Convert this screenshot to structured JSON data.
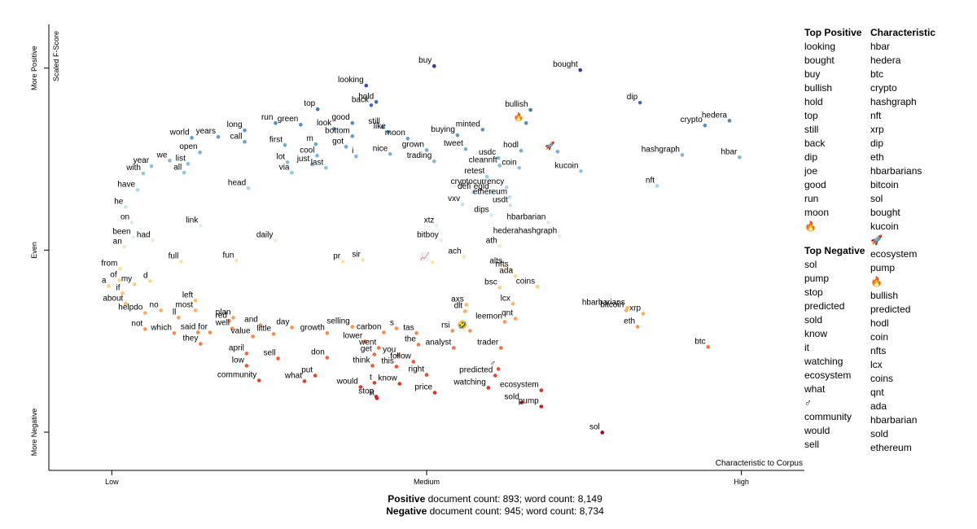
{
  "chart_data": {
    "type": "scatter",
    "ylabel": "Scaled F-Score",
    "xlabel": "Characteristic to Corpus",
    "xlim": [
      -10,
      110
    ],
    "ylim": [
      -121,
      124
    ],
    "xticks": [
      {
        "value": 0,
        "label": "Low"
      },
      {
        "value": 50,
        "label": "Medium"
      },
      {
        "value": 100,
        "label": "High"
      }
    ],
    "yticks": [
      {
        "value": -100,
        "label": "More Negative"
      },
      {
        "value": 0,
        "label": "Even"
      },
      {
        "value": 100,
        "label": "More Positive"
      }
    ],
    "colormap": [
      "#a50026",
      "#d73027",
      "#f46d43",
      "#fdae61",
      "#fee090",
      "#e0f3f8",
      "#abd9e9",
      "#74add1",
      "#4575b4",
      "#313695"
    ],
    "terms": [
      "buy",
      "bought",
      "looking",
      "hold",
      "back",
      "top",
      "dip",
      "bullish",
      "run",
      "green",
      "good",
      "still",
      "like",
      "long",
      "look",
      "minted",
      "crypto",
      "hedera",
      "world",
      "years",
      "call",
      "bottom",
      "moon",
      "buying",
      "first",
      "m",
      "got",
      "grown",
      "tweet",
      "hodl",
      "open",
      "cool",
      "i",
      "nice",
      "usdc",
      "lot",
      "just",
      "we",
      "trading",
      "list",
      "year",
      "cleannft",
      "coin",
      "last",
      "all",
      "via",
      "with",
      "hashgraph",
      "hbar",
      "kucoin",
      "retest",
      "nft",
      "head",
      "cryptocurrency",
      "have",
      "defi",
      "egld",
      "ethereum",
      "he",
      "vxv",
      "usdt",
      "dips",
      "on",
      "link",
      "xtz",
      "hbarbarian",
      "bitboy",
      "hederahashgraph",
      "been",
      "had",
      "daily",
      "ath",
      "an",
      "ach",
      "full",
      "fun",
      "pr",
      "sir",
      "alts",
      "nfts",
      "from",
      "of",
      "ada",
      "my",
      "d",
      "a",
      "coins",
      "bsc",
      "if",
      "left",
      "axs",
      "about",
      "lcx",
      "most",
      "dlt",
      "helpdo",
      "no",
      "hbarbarians",
      "bitcoin",
      "xrp",
      "ll",
      "qnt",
      "red",
      "plan",
      "leemon",
      "well",
      "selling",
      "and",
      "s",
      "rsi",
      "eth",
      "not",
      "which",
      "said",
      "for",
      "day",
      "growth",
      "little",
      "carbon",
      "tas",
      "value",
      "they",
      "lower",
      "the",
      "went",
      "analyst",
      "trader",
      "btc",
      "april",
      "get",
      "you",
      "don",
      "sell",
      "follow",
      "low",
      "think",
      "this",
      "predicted",
      "right",
      "put",
      "community",
      "what",
      "know",
      "t",
      "would",
      "ecosystem",
      "price",
      "watching",
      "stop",
      "sold",
      "pump",
      "it",
      "sol",
      "🔥",
      "🚀",
      "📈",
      "🤣",
      "♂"
    ],
    "x": [
      51.2,
      74.4,
      40.4,
      42.0,
      41.2,
      32.7,
      83.9,
      66.5,
      26.0,
      30.0,
      38.2,
      43.0,
      43.9,
      21.1,
      35.3,
      58.9,
      94.2,
      98.1,
      12.7,
      16.9,
      21.1,
      38.2,
      47.0,
      54.9,
      27.5,
      32.4,
      37.2,
      50.0,
      56.2,
      65.0,
      14.0,
      32.6,
      38.8,
      44.2,
      61.4,
      27.9,
      31.8,
      9.2,
      51.2,
      12.1,
      6.3,
      61.6,
      64.7,
      34.0,
      11.5,
      28.6,
      5.0,
      90.6,
      99.7,
      74.5,
      59.6,
      86.6,
      21.7,
      62.7,
      4.1,
      57.4,
      60.3,
      63.2,
      2.2,
      55.7,
      63.3,
      60.3,
      3.2,
      14.1,
      51.6,
      69.3,
      52.3,
      71.1,
      3.4,
      6.5,
      26.0,
      61.6,
      2.0,
      55.9,
      11.0,
      19.8,
      36.7,
      39.9,
      62.4,
      63.4,
      1.3,
      1.2,
      64.1,
      3.6,
      6.1,
      -0.5,
      67.6,
      61.6,
      1.7,
      13.3,
      56.3,
      2.2,
      63.7,
      13.3,
      56.1,
      5.3,
      7.8,
      81.9,
      81.7,
      84.4,
      10.6,
      64.1,
      18.7,
      19.3,
      62.4,
      19.1,
      38.2,
      23.6,
      45.2,
      54.1,
      83.5,
      5.3,
      9.9,
      13.7,
      15.6,
      28.6,
      34.2,
      25.7,
      43.2,
      48.4,
      22.4,
      14.1,
      40.2,
      48.7,
      42.4,
      54.3,
      61.8,
      94.7,
      21.4,
      41.7,
      45.5,
      34.2,
      26.4,
      47.9,
      21.4,
      41.4,
      45.2,
      60.9,
      50.0,
      32.3,
      23.4,
      30.6,
      45.7,
      41.7,
      39.5,
      68.2,
      51.3,
      59.8,
      42.0,
      65.1,
      68.2,
      42.1,
      77.9,
      65.8,
      70.8,
      50.9,
      56.9,
      61.4
    ],
    "y": [
      101.1,
      98.9,
      90.4,
      81.4,
      79.6,
      77.4,
      81.0,
      77.0,
      69.8,
      68.9,
      69.8,
      67.6,
      64.9,
      65.8,
      66.7,
      66.2,
      68.5,
      71.1,
      61.7,
      62.2,
      59.5,
      62.6,
      61.3,
      63.1,
      57.7,
      58.2,
      56.8,
      55.0,
      55.5,
      54.6,
      53.7,
      51.9,
      51.5,
      52.8,
      50.6,
      48.3,
      47.0,
      49.2,
      48.8,
      47.4,
      46.1,
      46.5,
      45.2,
      45.2,
      42.5,
      42.5,
      42.1,
      52.3,
      51.0,
      43.4,
      40.3,
      35.3,
      34.0,
      34.5,
      33.1,
      31.8,
      31.8,
      29.1,
      23.7,
      25.1,
      24.6,
      19.2,
      15.2,
      13.4,
      13.4,
      15.2,
      5.4,
      7.6,
      7.2,
      5.4,
      5.4,
      2.2,
      1.8,
      -3.6,
      -6.3,
      -5.8,
      -6.3,
      -5.4,
      -8.9,
      -10.7,
      -10.3,
      -16.6,
      -14.3,
      -18.8,
      -17.0,
      -19.7,
      -20.1,
      -20.6,
      -23.7,
      -27.7,
      -30.0,
      -29.5,
      -29.5,
      -33.1,
      -33.6,
      -34.5,
      -33.1,
      -31.8,
      -33.1,
      -34.9,
      -37.1,
      -37.6,
      -38.9,
      -37.1,
      -39.4,
      -43.0,
      -42.1,
      -41.2,
      -43.0,
      -44.3,
      -42.1,
      -43.4,
      -45.6,
      -45.2,
      -45.2,
      -42.5,
      -45.6,
      -46.1,
      -45.2,
      -45.6,
      -47.4,
      -51.5,
      -50.1,
      -51.9,
      -53.7,
      -53.7,
      -53.7,
      -53.2,
      -56.8,
      -57.3,
      -57.7,
      -59.1,
      -59.5,
      -61.3,
      -63.5,
      -63.5,
      -64.0,
      -68.9,
      -68.5,
      -68.9,
      -71.6,
      -72.0,
      -73.4,
      -72.9,
      -75.2,
      -77.0,
      -78.3,
      -75.6,
      -80.5,
      -83.7,
      -85.9,
      -81.4,
      -100.2,
      69.8,
      54.1,
      -6.7,
      -44.3,
      -65.3
    ]
  },
  "panel": {
    "top_positive": {
      "title": "Top Positive",
      "items": [
        "looking",
        "bought",
        "buy",
        "bullish",
        "hold",
        "top",
        "still",
        "back",
        "dip",
        "joe",
        "good",
        "run",
        "moon",
        "🔥"
      ]
    },
    "top_negative": {
      "title": "Top Negative",
      "items": [
        "sol",
        "pump",
        "stop",
        "predicted",
        "sold",
        "know",
        "it",
        "watching",
        "ecosystem",
        "what",
        "♂",
        "community",
        "would",
        "sell"
      ]
    },
    "characteristic": {
      "title": "Characteristic",
      "items": [
        "hbar",
        "hedera",
        "btc",
        "crypto",
        "hashgraph",
        "nft",
        "xrp",
        "dip",
        "eth",
        "hbarbarians",
        "bitcoin",
        "sol",
        "bought",
        "kucoin",
        "🚀",
        "ecosystem",
        "pump",
        "🔥",
        "bullish",
        "predicted",
        "hodl",
        "coin",
        "nfts",
        "lcx",
        "coins",
        "qnt",
        "ada",
        "hbarbarian",
        "sold",
        "ethereum"
      ]
    }
  },
  "footer": {
    "positive_label": "Positive",
    "positive_text": " document count: 893; word count: 8,149",
    "negative_label": "Negative",
    "negative_text": " document count: 945; word count: 8,734"
  }
}
